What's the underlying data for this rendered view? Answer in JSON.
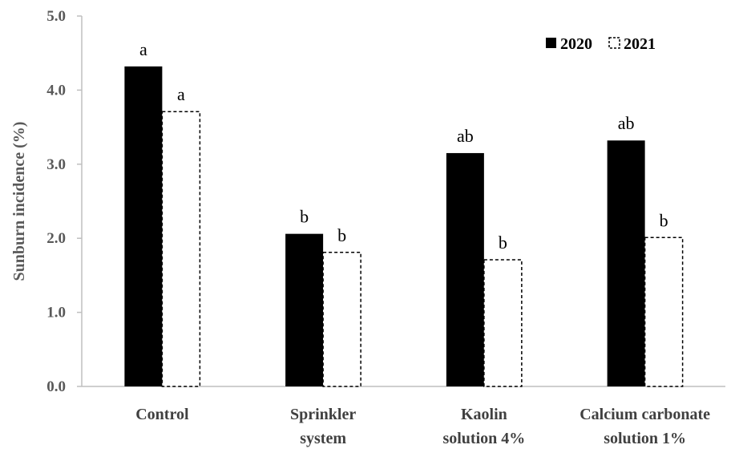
{
  "chart_data": {
    "type": "bar",
    "categories": [
      [
        "Control"
      ],
      [
        "Sprinkler",
        "system"
      ],
      [
        "Kaolin",
        "solution 4%"
      ],
      [
        "Calcium carbonate",
        "solution 1%"
      ]
    ],
    "series": [
      {
        "name": "2020",
        "values": [
          4.32,
          2.06,
          3.15,
          3.32
        ],
        "labels": [
          "a",
          "b",
          "ab",
          "ab"
        ],
        "style": "solid",
        "color": "#000000"
      },
      {
        "name": "2021",
        "values": [
          3.71,
          1.81,
          1.71,
          2.01
        ],
        "labels": [
          "a",
          "b",
          "b",
          "b"
        ],
        "style": "dashed",
        "color": "#000000"
      }
    ],
    "title": "",
    "xlabel": "",
    "ylabel": "Sunburn incidence (%)",
    "ylim": [
      0,
      5
    ],
    "yticks": [
      "0.0",
      "1.0",
      "2.0",
      "3.0",
      "4.0",
      "5.0"
    ],
    "grid": false,
    "legend_position": "top-right"
  }
}
